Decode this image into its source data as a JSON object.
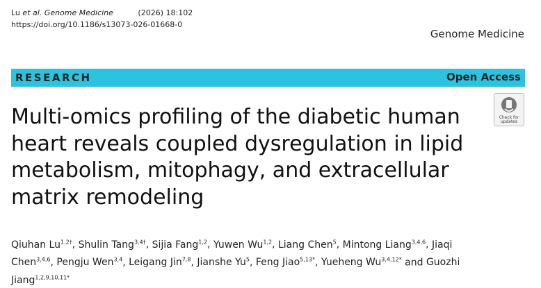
{
  "header": {
    "author_short": "Lu",
    "et_al": "et al.",
    "journal_italic": "Genome Medicine",
    "volume": "(2026) 18:102",
    "doi": "https://doi.org/10.1186/s13073-026-01668-0",
    "journal_name": "Genome Medicine"
  },
  "banner": {
    "type": "RESEARCH",
    "access": "Open Access"
  },
  "badge": {
    "text": "Check for updates"
  },
  "title_lines": [
    "Multi-omics profiling of the diabetic human",
    "heart reveals coupled dysregulation in lipid",
    "metabolism, mitophagy, and extracellular",
    "matrix remodeling"
  ],
  "authors": {
    "separator": ", ",
    "last_separator": " and ",
    "list": [
      {
        "name": "Qiuhan Lu",
        "sup": "1,2†"
      },
      {
        "name": "Shulin Tang",
        "sup": "3,4†"
      },
      {
        "name": "Sijia Fang",
        "sup": "1,2"
      },
      {
        "name": "Yuwen Wu",
        "sup": "1,2"
      },
      {
        "name": "Liang Chen",
        "sup": "5"
      },
      {
        "name": "Mintong Liang",
        "sup": "3,4,6"
      },
      {
        "name": "Jiaqi Chen",
        "sup": "3,4,6"
      },
      {
        "name": "Pengju Wen",
        "sup": "3,4"
      },
      {
        "name": "Leigang Jin",
        "sup": "7,8"
      },
      {
        "name": "Jianshe Yu",
        "sup": "5"
      },
      {
        "name": "Feng Jiao",
        "sup": "5,13*"
      },
      {
        "name": "Yueheng Wu",
        "sup": "3,4,12*"
      },
      {
        "name": "Guozhi Jiang",
        "sup": "1,2,9,10,11*"
      }
    ]
  }
}
